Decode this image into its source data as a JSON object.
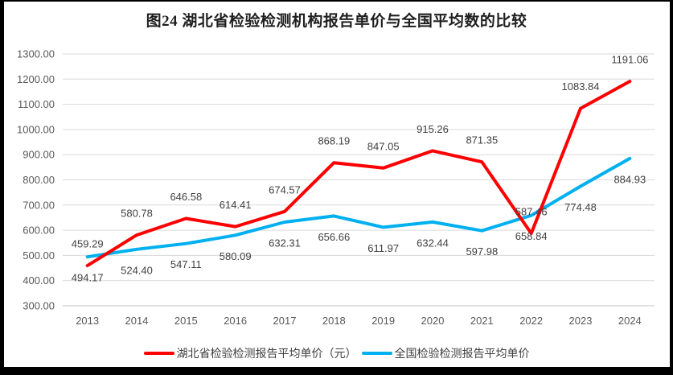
{
  "window": {
    "background": "#ffffff",
    "frame_color": "#000000"
  },
  "chart_data": {
    "type": "line",
    "title": "图24 湖北省检验检测机构报告单价与全国平均数的比较",
    "categories": [
      "2013",
      "2014",
      "2015",
      "2016",
      "2017",
      "2018",
      "2019",
      "2020",
      "2021",
      "2022",
      "2023",
      "2024"
    ],
    "series": [
      {
        "name": "湖北省检验检测报告平均单价（元）",
        "color": "#FF0000",
        "label_position": "above",
        "values": [
          459.29,
          580.78,
          646.58,
          614.41,
          674.57,
          868.19,
          847.05,
          915.26,
          871.35,
          587.46,
          1083.84,
          1191.06
        ]
      },
      {
        "name": "全国检验检测报告平均单价",
        "color": "#00B0F0",
        "label_position": "below",
        "values": [
          494.17,
          524.4,
          547.11,
          580.09,
          632.31,
          656.66,
          611.97,
          632.44,
          597.98,
          658.84,
          774.48,
          884.93
        ]
      }
    ],
    "y_axis": {
      "min": 300,
      "max": 1300,
      "step": 100,
      "tick_labels_top_to_bottom": [
        "1300.00",
        "1200.00",
        "1100.00",
        "1000.00",
        "900.00",
        "800.00",
        "700.00",
        "600.00",
        "500.00",
        "400.00",
        "300.00"
      ]
    },
    "xlabel": "",
    "ylabel": "",
    "ylim": [
      300,
      1300
    ],
    "grid": true,
    "value_label_decimals": 2,
    "legend_position": "bottom",
    "style": {
      "gridline_color": "#D9D9D9",
      "axisline_color": "#C6C6C6",
      "line_width": 4
    }
  }
}
